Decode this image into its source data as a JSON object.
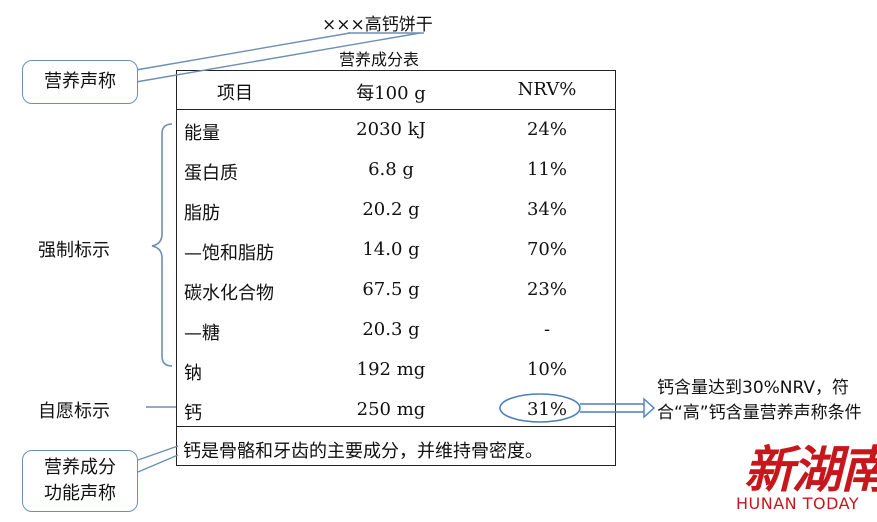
{
  "product_title": "×××高钙饼干",
  "table_title": "营养成分表",
  "table": {
    "headers": [
      "项目",
      "每100 g",
      "NRV%"
    ],
    "rows": [
      {
        "name": "能量",
        "amount": "2030 kJ",
        "nrv": "24%"
      },
      {
        "name": "蛋白质",
        "amount": "6.8 g",
        "nrv": "11%"
      },
      {
        "name": "脂肪",
        "amount": "20.2 g",
        "nrv": "34%"
      },
      {
        "name": "—饱和脂肪",
        "amount": "14.0 g",
        "nrv": "70%"
      },
      {
        "name": "碳水化合物",
        "amount": "67.5 g",
        "nrv": "23%"
      },
      {
        "name": "—糖",
        "amount": "20.3 g",
        "nrv": "-"
      },
      {
        "name": "钠",
        "amount": "192 mg",
        "nrv": "10%"
      },
      {
        "name": "钙",
        "amount": "250 mg",
        "nrv": "31%"
      }
    ],
    "footer": "钙是骨骼和牙齿的主要成分，并维持骨密度。"
  },
  "labels": {
    "nutrition_claim": "营养声称",
    "mandatory": "强制标示",
    "voluntary": "自愿标示",
    "function_claim_line1": "营养成分",
    "function_claim_line2": "功能声称"
  },
  "note": "钙含量达到30%NRV，符合“高”钙含量营养声称条件",
  "logo": {
    "cn": "新湖南",
    "en": "HUNAN TODAY"
  },
  "colors": {
    "callout_border": "#6d8fb3",
    "logo": "#c8161d"
  }
}
